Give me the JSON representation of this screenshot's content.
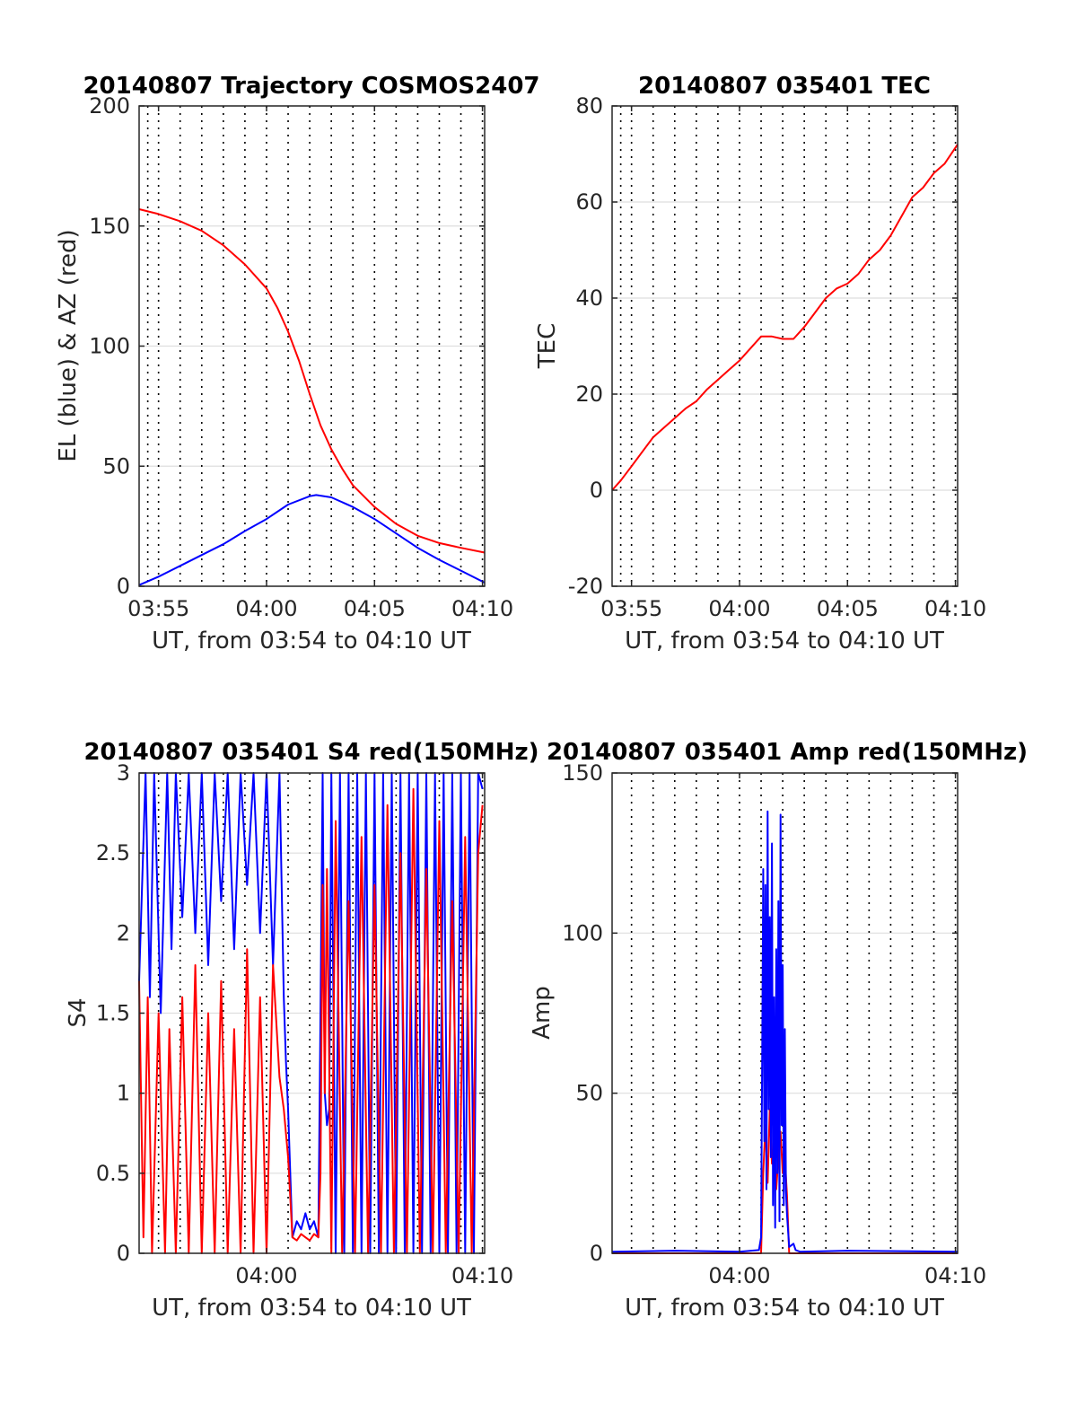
{
  "figure": {
    "x_axis_label": "UT, from 03:54 to 04:10 UT"
  },
  "chart_data": [
    {
      "id": "trajectory",
      "type": "line",
      "title": "20140807 Trajectory COSMOS2407",
      "xlabel": "UT, from 03:54 to 04:10 UT",
      "ylabel": "EL (blue) & AZ (red)",
      "xlim": [
        -5.9,
        10.1
      ],
      "x_unit": "minutes after 04:00 UT",
      "ylim": [
        0,
        200
      ],
      "xticks": [
        {
          "v": -5,
          "label": "03:55"
        },
        {
          "v": 0,
          "label": "04:00"
        },
        {
          "v": 5,
          "label": "04:05"
        },
        {
          "v": 10,
          "label": "04:10"
        }
      ],
      "yticks": [
        {
          "v": 0,
          "label": "0"
        },
        {
          "v": 50,
          "label": "50"
        },
        {
          "v": 100,
          "label": "100"
        },
        {
          "v": 150,
          "label": "150"
        },
        {
          "v": 200,
          "label": "200"
        }
      ],
      "x_dotted_grid": [
        -5.5,
        -5,
        -4,
        -3,
        -2,
        -1,
        0,
        1,
        2,
        3,
        4,
        5,
        6,
        7,
        8,
        9,
        10
      ],
      "grid": true,
      "series": [
        {
          "color": "#ff0000",
          "x": [
            -5.9,
            -5,
            -4,
            -3,
            -2,
            -1,
            0,
            0.5,
            1,
            1.5,
            2,
            2.5,
            3,
            3.5,
            4,
            5,
            6,
            7,
            8,
            9,
            10.1
          ],
          "y": [
            157,
            155,
            152,
            148,
            142,
            134,
            124,
            116,
            106,
            94,
            80,
            67,
            57,
            49,
            42,
            33,
            26,
            21,
            18,
            16,
            14
          ]
        },
        {
          "color": "#0000ff",
          "x": [
            -5.9,
            -5,
            -4,
            -3,
            -2,
            -1,
            0,
            1,
            2,
            2.3,
            3,
            4,
            5,
            6,
            7,
            8,
            9,
            10.1
          ],
          "y": [
            0.5,
            4,
            8.5,
            13,
            17.5,
            23,
            28,
            34,
            37.5,
            38,
            37,
            33,
            28,
            22,
            16,
            11,
            6.5,
            1.5
          ]
        }
      ]
    },
    {
      "id": "tec",
      "type": "line",
      "title": "20140807 035401 TEC",
      "xlabel": "UT, from 03:54 to 04:10 UT",
      "ylabel": "TEC",
      "xlim": [
        -5.9,
        10.1
      ],
      "x_unit": "minutes after 04:00 UT",
      "ylim": [
        -20,
        80
      ],
      "xticks": [
        {
          "v": -5,
          "label": "03:55"
        },
        {
          "v": 0,
          "label": "04:00"
        },
        {
          "v": 5,
          "label": "04:05"
        },
        {
          "v": 10,
          "label": "04:10"
        }
      ],
      "yticks": [
        {
          "v": -20,
          "label": "-20"
        },
        {
          "v": 0,
          "label": "0"
        },
        {
          "v": 20,
          "label": "20"
        },
        {
          "v": 40,
          "label": "40"
        },
        {
          "v": 60,
          "label": "60"
        },
        {
          "v": 80,
          "label": "80"
        }
      ],
      "x_dotted_grid": [
        -5.5,
        -5,
        -4,
        -3,
        -2,
        -1,
        0,
        1,
        2,
        3,
        4,
        5,
        6,
        7,
        8,
        9,
        10
      ],
      "grid": true,
      "series": [
        {
          "color": "#ff0000",
          "x": [
            -5.9,
            -5.5,
            -5,
            -4.5,
            -4,
            -3.5,
            -3,
            -2.5,
            -2,
            -1.5,
            -1,
            -0.5,
            0,
            0.5,
            1,
            1.5,
            2,
            2.5,
            3,
            3.5,
            4,
            4.5,
            5,
            5.5,
            6,
            6.5,
            7,
            7.5,
            8,
            8.5,
            9,
            9.5,
            10.1
          ],
          "y": [
            0,
            2,
            5,
            8,
            11,
            13,
            15,
            17,
            18.5,
            21,
            23,
            25,
            27,
            29.5,
            32,
            32,
            31.5,
            31.5,
            34,
            37,
            40,
            42,
            43,
            45,
            48,
            50,
            53,
            57,
            61,
            63,
            66,
            68,
            72
          ]
        }
      ]
    },
    {
      "id": "s4",
      "type": "line",
      "title": "20140807 035401 S4 red(150MHz)",
      "xlabel": "UT, from 03:54 to 04:10 UT",
      "ylabel": "S4",
      "xlim": [
        -5.9,
        10.1
      ],
      "x_unit": "minutes after 04:00 UT",
      "ylim": [
        0,
        3
      ],
      "xticks": [
        {
          "v": 0,
          "label": "04:00"
        },
        {
          "v": 10,
          "label": "04:10"
        }
      ],
      "yticks": [
        {
          "v": 0,
          "label": "0"
        },
        {
          "v": 0.5,
          "label": "0.5"
        },
        {
          "v": 1,
          "label": "1"
        },
        {
          "v": 1.5,
          "label": "1.5"
        },
        {
          "v": 2,
          "label": "2"
        },
        {
          "v": 2.5,
          "label": "2.5"
        },
        {
          "v": 3,
          "label": "3"
        }
      ],
      "x_dotted_grid": [
        -5,
        -4,
        -3,
        -2,
        -1,
        0,
        1,
        2,
        3,
        4,
        5,
        6,
        7,
        8,
        9,
        10
      ],
      "grid": true,
      "series": [
        {
          "color": "#0000ff",
          "x": [
            -5.9,
            -5.6,
            -5.4,
            -5.2,
            -4.9,
            -4.6,
            -4.4,
            -4.2,
            -3.9,
            -3.6,
            -3.3,
            -3.0,
            -2.7,
            -2.4,
            -2.1,
            -1.8,
            -1.5,
            -1.2,
            -0.9,
            -0.6,
            -0.3,
            0.0,
            0.3,
            0.6,
            0.8,
            0.9,
            1.0,
            1.2,
            1.4,
            1.6,
            1.8,
            2.0,
            2.2,
            2.4,
            2.5,
            2.6,
            2.7,
            2.8,
            2.9,
            3.0,
            3.2,
            3.4,
            3.6,
            3.8,
            4.0,
            4.2,
            4.4,
            4.6,
            4.8,
            5.0,
            5.2,
            5.4,
            5.6,
            5.8,
            6.0,
            6.2,
            6.4,
            6.6,
            6.8,
            7.0,
            7.2,
            7.4,
            7.6,
            7.8,
            8.0,
            8.2,
            8.4,
            8.6,
            8.8,
            9.0,
            9.2,
            9.4,
            9.6,
            9.8,
            10.0
          ],
          "y": [
            1.7,
            3.0,
            1.6,
            3.0,
            1.5,
            3.0,
            1.9,
            3.0,
            2.1,
            3.0,
            2.0,
            3.0,
            1.8,
            3.0,
            2.2,
            3.0,
            1.9,
            3.0,
            2.3,
            3.0,
            2.0,
            3.0,
            1.8,
            3.0,
            1.6,
            1.2,
            0.9,
            0.1,
            0.2,
            0.15,
            0.25,
            0.15,
            0.2,
            0.1,
            1.5,
            3.0,
            1.0,
            0.8,
            0.9,
            3.0,
            0.0,
            3.0,
            0.0,
            3.0,
            0.0,
            3.0,
            0.0,
            3.0,
            0.0,
            3.0,
            0.0,
            3.0,
            0.0,
            3.0,
            0.0,
            3.0,
            0.0,
            3.0,
            0.0,
            3.0,
            0.0,
            3.0,
            0.0,
            3.0,
            0.0,
            3.0,
            0.0,
            3.0,
            0.0,
            3.0,
            0.0,
            3.0,
            0.0,
            3.0,
            2.9
          ]
        },
        {
          "color": "#ff0000",
          "x": [
            -5.9,
            -5.7,
            -5.5,
            -5.3,
            -5.0,
            -4.7,
            -4.5,
            -4.2,
            -3.9,
            -3.6,
            -3.3,
            -3.0,
            -2.7,
            -2.4,
            -2.1,
            -1.8,
            -1.5,
            -1.2,
            -0.9,
            -0.6,
            -0.3,
            0.0,
            0.3,
            0.6,
            0.8,
            1.0,
            1.2,
            1.4,
            1.6,
            1.8,
            2.0,
            2.2,
            2.4,
            2.5,
            2.6,
            2.7,
            2.8,
            3.0,
            3.2,
            3.5,
            3.8,
            4.1,
            4.4,
            4.7,
            5.0,
            5.3,
            5.6,
            5.9,
            6.2,
            6.5,
            6.8,
            7.1,
            7.4,
            7.7,
            8.0,
            8.3,
            8.6,
            8.9,
            9.2,
            9.5,
            9.8,
            10.0
          ],
          "y": [
            1.7,
            0.1,
            1.6,
            0.0,
            1.5,
            0.0,
            1.4,
            0.0,
            1.6,
            0.0,
            1.8,
            0.0,
            1.5,
            0.0,
            1.7,
            0.0,
            1.4,
            0.0,
            1.9,
            0.0,
            1.6,
            0.0,
            1.8,
            1.1,
            0.9,
            0.6,
            0.1,
            0.08,
            0.12,
            0.1,
            0.08,
            0.12,
            0.1,
            0.5,
            2.3,
            1.0,
            2.4,
            0.0,
            2.7,
            0.0,
            2.2,
            0.0,
            2.6,
            0.0,
            2.3,
            0.0,
            2.8,
            0.0,
            2.5,
            0.0,
            2.9,
            0.0,
            2.4,
            0.0,
            2.7,
            0.0,
            2.2,
            0.0,
            2.6,
            0.0,
            2.5,
            2.8
          ]
        }
      ]
    },
    {
      "id": "amp",
      "type": "line",
      "title": "20140807 035401 Amp red(150MHz)",
      "xlabel": "UT, from 03:54 to 04:10 UT",
      "ylabel": "Amp",
      "xlim": [
        -5.9,
        10.1
      ],
      "x_unit": "minutes after 04:00 UT",
      "ylim": [
        0,
        150
      ],
      "xticks": [
        {
          "v": 0,
          "label": "04:00"
        },
        {
          "v": 10,
          "label": "04:10"
        }
      ],
      "yticks": [
        {
          "v": 0,
          "label": "0"
        },
        {
          "v": 50,
          "label": "50"
        },
        {
          "v": 100,
          "label": "100"
        },
        {
          "v": 150,
          "label": "150"
        }
      ],
      "x_dotted_grid": [
        -5,
        -4,
        -3,
        -2,
        -1,
        0,
        1,
        2,
        3,
        4,
        5,
        6,
        7,
        8,
        9,
        10
      ],
      "grid": true,
      "series": [
        {
          "color": "#ff0000",
          "x": [
            -5.9,
            1.0,
            1.1,
            1.2,
            1.3,
            1.4,
            1.5,
            1.6,
            1.7,
            1.8,
            1.9,
            2.0,
            2.1,
            2.2,
            2.3,
            10.1
          ],
          "y": [
            0,
            0,
            25,
            40,
            22,
            45,
            28,
            35,
            20,
            30,
            38,
            25,
            30,
            18,
            0,
            0
          ]
        },
        {
          "color": "#0000ff",
          "x": [
            -5.9,
            -3,
            0,
            0.9,
            1.0,
            1.05,
            1.1,
            1.15,
            1.2,
            1.25,
            1.3,
            1.35,
            1.4,
            1.45,
            1.5,
            1.55,
            1.6,
            1.65,
            1.7,
            1.75,
            1.8,
            1.85,
            1.9,
            1.95,
            2.0,
            2.05,
            2.1,
            2.15,
            2.2,
            2.3,
            2.5,
            2.6,
            2.8,
            5,
            10.1
          ],
          "y": [
            0.5,
            0.8,
            0.5,
            1.0,
            5,
            60,
            120,
            35,
            115,
            20,
            138,
            45,
            105,
            30,
            128,
            15,
            80,
            8,
            95,
            25,
            110,
            10,
            137,
            40,
            90,
            15,
            70,
            20,
            12,
            2,
            3,
            1,
            0.5,
            0.8,
            0.5
          ]
        }
      ]
    }
  ]
}
